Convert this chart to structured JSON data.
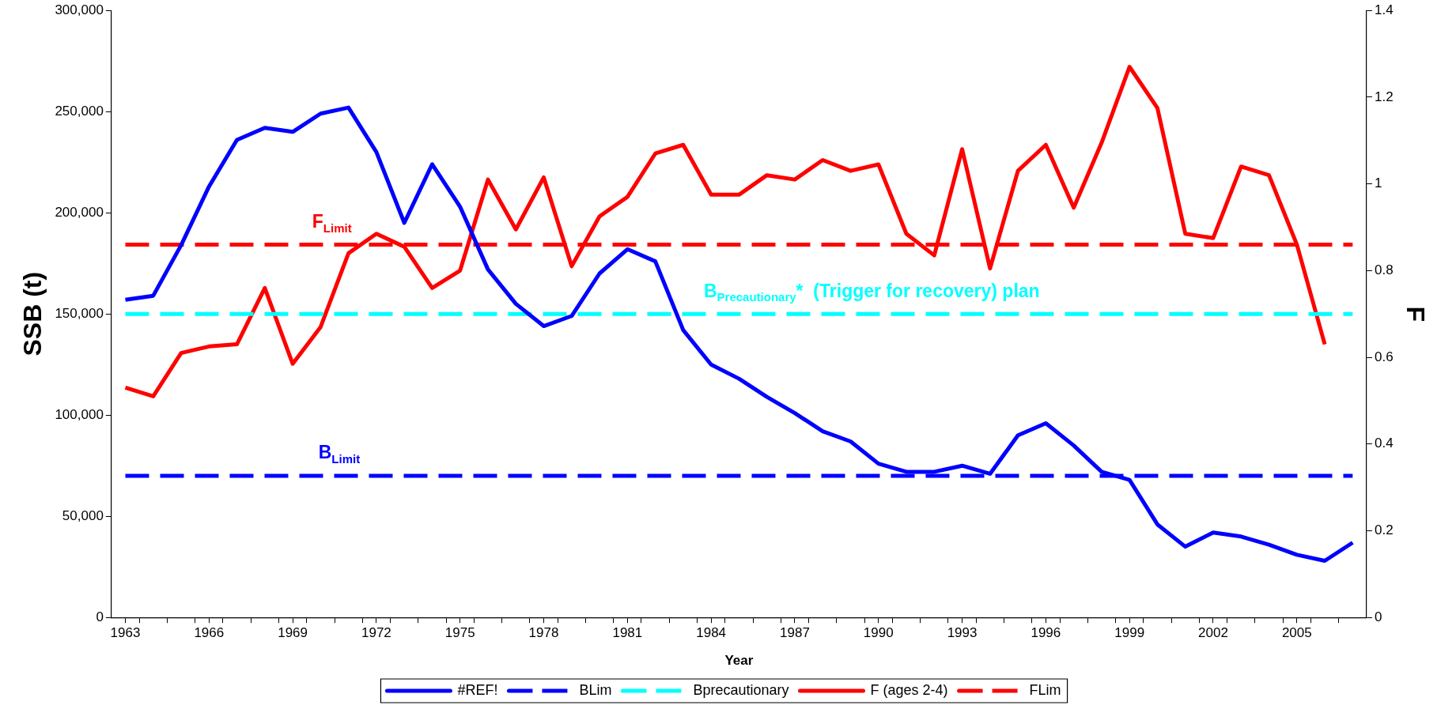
{
  "chart_data": {
    "type": "line",
    "xlabel": "Year",
    "ylabel": "SSB (t)",
    "y2label": "F",
    "legend": "bottom",
    "grid": false,
    "marker": "none",
    "x": [
      1963,
      1964,
      1965,
      1966,
      1967,
      1968,
      1969,
      1970,
      1971,
      1972,
      1973,
      1974,
      1975,
      1976,
      1977,
      1978,
      1979,
      1980,
      1981,
      1982,
      1983,
      1984,
      1985,
      1986,
      1987,
      1988,
      1989,
      1990,
      1991,
      1992,
      1993,
      1994,
      1995,
      1996,
      1997,
      1998,
      1999,
      2000,
      2001,
      2002,
      2003,
      2004,
      2005,
      2006,
      2007
    ],
    "xlim": [
      1962.5,
      2007.5
    ],
    "xticks": [
      1963,
      1966,
      1969,
      1972,
      1975,
      1978,
      1981,
      1984,
      1987,
      1990,
      1993,
      1996,
      1999,
      2002,
      2005,
      {
        "value": 1963.5,
        "label": null
      },
      {
        "value": 1964.5,
        "label": null
      },
      {
        "value": 1965.5,
        "label": null
      },
      {
        "value": 1966.5,
        "label": null
      },
      {
        "value": 1967.5,
        "label": null
      },
      {
        "value": 1968.5,
        "label": null
      },
      {
        "value": 1969.5,
        "label": null
      },
      {
        "value": 1970.5,
        "label": null
      },
      {
        "value": 1971.5,
        "label": null
      },
      {
        "value": 1972.5,
        "label": null
      },
      {
        "value": 1973.5,
        "label": null
      },
      {
        "value": 1974.5,
        "label": null
      },
      {
        "value": 1975.5,
        "label": null
      },
      {
        "value": 1976.5,
        "label": null
      },
      {
        "value": 1977.5,
        "label": null
      },
      {
        "value": 1978.5,
        "label": null
      },
      {
        "value": 1979.5,
        "label": null
      },
      {
        "value": 1980.5,
        "label": null
      },
      {
        "value": 1981.5,
        "label": null
      },
      {
        "value": 1982.5,
        "label": null
      },
      {
        "value": 1983.5,
        "label": null
      },
      {
        "value": 1984.5,
        "label": null
      },
      {
        "value": 1985.5,
        "label": null
      },
      {
        "value": 1986.5,
        "label": null
      },
      {
        "value": 1987.5,
        "label": null
      },
      {
        "value": 1988.5,
        "label": null
      },
      {
        "value": 1989.5,
        "label": null
      },
      {
        "value": 1990.5,
        "label": null
      },
      {
        "value": 1991.5,
        "label": null
      },
      {
        "value": 1992.5,
        "label": null
      },
      {
        "value": 1993.5,
        "label": null
      },
      {
        "value": 1994.5,
        "label": null
      },
      {
        "value": 1995.5,
        "label": null
      },
      {
        "value": 1996.5,
        "label": null
      },
      {
        "value": 1997.5,
        "label": null
      },
      {
        "value": 1998.5,
        "label": null
      },
      {
        "value": 1999.5,
        "label": null
      },
      {
        "value": 2000.5,
        "label": null
      },
      {
        "value": 2001.5,
        "label": null
      },
      {
        "value": 2002.5,
        "label": null
      },
      {
        "value": 2003.5,
        "label": null
      },
      {
        "value": 2004.5,
        "label": null
      },
      {
        "value": 2005.5,
        "label": null
      },
      {
        "value": 2006.5,
        "label": null
      }
    ],
    "ylim": [
      0,
      300000
    ],
    "yticks": [
      {
        "value": 0,
        "label": "0"
      },
      {
        "value": 50000,
        "label": "50,000"
      },
      {
        "value": 100000,
        "label": "100,000"
      },
      {
        "value": 150000,
        "label": "150,000"
      },
      {
        "value": 200000,
        "label": "200,000"
      },
      {
        "value": 250000,
        "label": "250,000"
      },
      {
        "value": 300000,
        "label": "300,000"
      }
    ],
    "y2lim": [
      0,
      1.4
    ],
    "y2ticks": [
      0,
      0.2,
      0.4,
      0.6,
      0.8,
      1,
      1.2,
      1.4
    ],
    "series": [
      {
        "name": "#REF!",
        "color": "#0000ff",
        "values": [
          157000,
          159000,
          184000,
          213000,
          236000,
          242000,
          240000,
          249000,
          252000,
          230000,
          195000,
          224000,
          203000,
          172000,
          155000,
          144000,
          149000,
          170000,
          182000,
          176000,
          142000,
          125000,
          118000,
          109000,
          101000,
          92000,
          87000,
          76000,
          72000,
          72000,
          75000,
          71000,
          90000,
          96000,
          85000,
          72000,
          68000,
          46000,
          35000,
          42000,
          40000,
          36000,
          31000,
          28000,
          37000
        ]
      },
      {
        "name": "BLim",
        "color": "#0000ff",
        "line_style": "dashed",
        "values": [
          70000,
          70000,
          70000,
          70000,
          70000,
          70000,
          70000,
          70000,
          70000,
          70000,
          70000,
          70000,
          70000,
          70000,
          70000,
          70000,
          70000,
          70000,
          70000,
          70000,
          70000,
          70000,
          70000,
          70000,
          70000,
          70000,
          70000,
          70000,
          70000,
          70000,
          70000,
          70000,
          70000,
          70000,
          70000,
          70000,
          70000,
          70000,
          70000,
          70000,
          70000,
          70000,
          70000,
          70000,
          70000
        ]
      },
      {
        "name": "Bprecautionary",
        "color": "#00ffff",
        "line_style": "dashed",
        "values": [
          150000,
          150000,
          150000,
          150000,
          150000,
          150000,
          150000,
          150000,
          150000,
          150000,
          150000,
          150000,
          150000,
          150000,
          150000,
          150000,
          150000,
          150000,
          150000,
          150000,
          150000,
          150000,
          150000,
          150000,
          150000,
          150000,
          150000,
          150000,
          150000,
          150000,
          150000,
          150000,
          150000,
          150000,
          150000,
          150000,
          150000,
          150000,
          150000,
          150000,
          150000,
          150000,
          150000,
          150000,
          150000
        ]
      },
      {
        "name": "F (ages 2-4)",
        "color": "#ff0000",
        "axis": "y2",
        "values": [
          0.53,
          0.51,
          0.61,
          0.625,
          0.63,
          0.76,
          0.585,
          0.67,
          0.84,
          0.885,
          0.855,
          0.76,
          0.8,
          1.01,
          0.895,
          1.015,
          0.81,
          0.925,
          0.97,
          1.07,
          1.09,
          0.975,
          0.975,
          1.02,
          1.01,
          1.055,
          1.03,
          1.045,
          0.885,
          0.835,
          1.08,
          0.805,
          1.03,
          1.09,
          0.945,
          1.095,
          1.27,
          1.175,
          0.885,
          0.875,
          1.04,
          1.02,
          0.86,
          0.63,
          null
        ]
      },
      {
        "name": "FLim",
        "color": "#ff0000",
        "axis": "y2",
        "line_style": "dashed",
        "values": [
          0.86,
          0.86,
          0.86,
          0.86,
          0.86,
          0.86,
          0.86,
          0.86,
          0.86,
          0.86,
          0.86,
          0.86,
          0.86,
          0.86,
          0.86,
          0.86,
          0.86,
          0.86,
          0.86,
          0.86,
          0.86,
          0.86,
          0.86,
          0.86,
          0.86,
          0.86,
          0.86,
          0.86,
          0.86,
          0.86,
          0.86,
          0.86,
          0.86,
          0.86,
          0.86,
          0.86,
          0.86,
          0.86,
          0.86,
          0.86,
          0.86,
          0.86,
          0.86,
          0.86,
          0.86
        ]
      }
    ],
    "annotations": [
      "B$_{Limit}$",
      "B$_{Precautionary}$*  (Trigger for recovery) plan",
      "F$_{Limit}$"
    ]
  }
}
